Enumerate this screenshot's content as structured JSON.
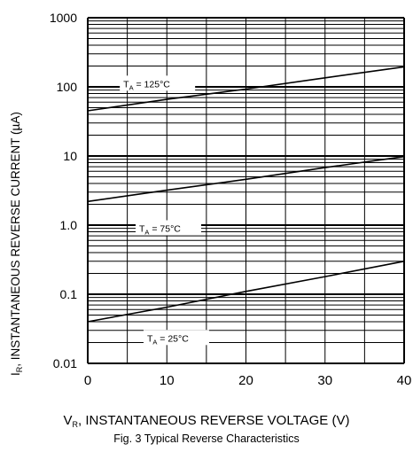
{
  "chart_data": {
    "type": "line",
    "xlabel_main": "V",
    "xlabel_sub": "R",
    "xlabel_rest": ", INSTANTANEOUS REVERSE VOLTAGE (V)",
    "ylabel_main": "I",
    "ylabel_sub": "R",
    "ylabel_rest": ", INSTANTANEOUS REVERSE CURRENT (µA)",
    "caption": "Fig. 3  Typical Reverse Characteristics",
    "x_scale": "linear",
    "y_scale": "log",
    "xlim": [
      0,
      40
    ],
    "ylim": [
      0.01,
      1000
    ],
    "x_ticks": [
      0,
      10,
      20,
      30,
      40
    ],
    "x_tick_labels": [
      "0",
      "10",
      "20",
      "30",
      "40"
    ],
    "y_ticks": [
      0.01,
      0.1,
      1,
      10,
      100,
      1000
    ],
    "y_tick_labels": [
      "0.01",
      "0.1",
      "1.0",
      "10",
      "100",
      "1000"
    ],
    "grid": true,
    "series": [
      {
        "name": "TA = 125°C",
        "label_main": "T",
        "label_sub": "A",
        "label_rest": " = 125°C",
        "x": [
          0,
          10,
          20,
          30,
          40
        ],
        "y": [
          45,
          66,
          93,
          135,
          195
        ]
      },
      {
        "name": "TA = 75°C",
        "label_main": "T",
        "label_sub": "A",
        "label_rest": " = 75°C",
        "x": [
          0,
          10,
          20,
          30,
          40
        ],
        "y": [
          2.2,
          3.2,
          4.6,
          6.8,
          9.8
        ]
      },
      {
        "name": "TA = 25°C",
        "label_main": "T",
        "label_sub": "A",
        "label_rest": " = 25°C",
        "x": [
          0,
          10,
          20,
          30,
          40
        ],
        "y": [
          0.04,
          0.065,
          0.11,
          0.18,
          0.3
        ]
      }
    ]
  }
}
